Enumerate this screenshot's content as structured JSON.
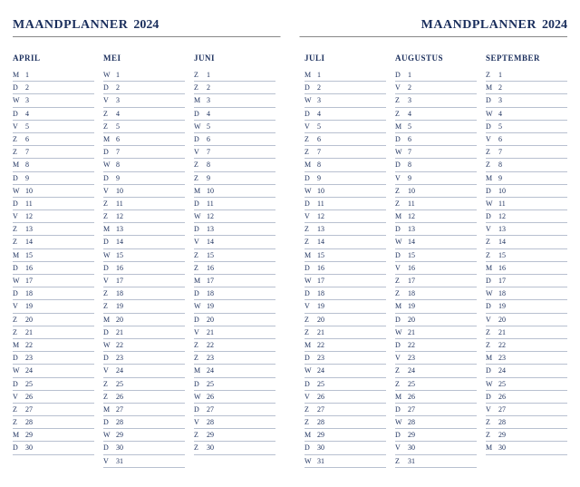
{
  "header": {
    "title": "MAANDPLANNER",
    "year": "2024"
  },
  "colors": {
    "text": "#1a2e5c",
    "rule": "#b8c0d0",
    "header_rule": "#888888",
    "bg": "#ffffff"
  },
  "weekday_letters": [
    "M",
    "D",
    "W",
    "D",
    "V",
    "Z",
    "Z"
  ],
  "months": [
    {
      "name": "APRIL",
      "days": 30,
      "start_index": 0
    },
    {
      "name": "MEI",
      "days": 31,
      "start_index": 2
    },
    {
      "name": "JUNI",
      "days": 30,
      "start_index": 5
    },
    {
      "name": "JULI",
      "days": 31,
      "start_index": 0
    },
    {
      "name": "AUGUSTUS",
      "days": 31,
      "start_index": 3
    },
    {
      "name": "SEPTEMBER",
      "days": 30,
      "start_index": 6
    }
  ],
  "pages": [
    {
      "side": "left",
      "month_indices": [
        0,
        1,
        2
      ]
    },
    {
      "side": "right",
      "month_indices": [
        3,
        4,
        5
      ]
    }
  ]
}
